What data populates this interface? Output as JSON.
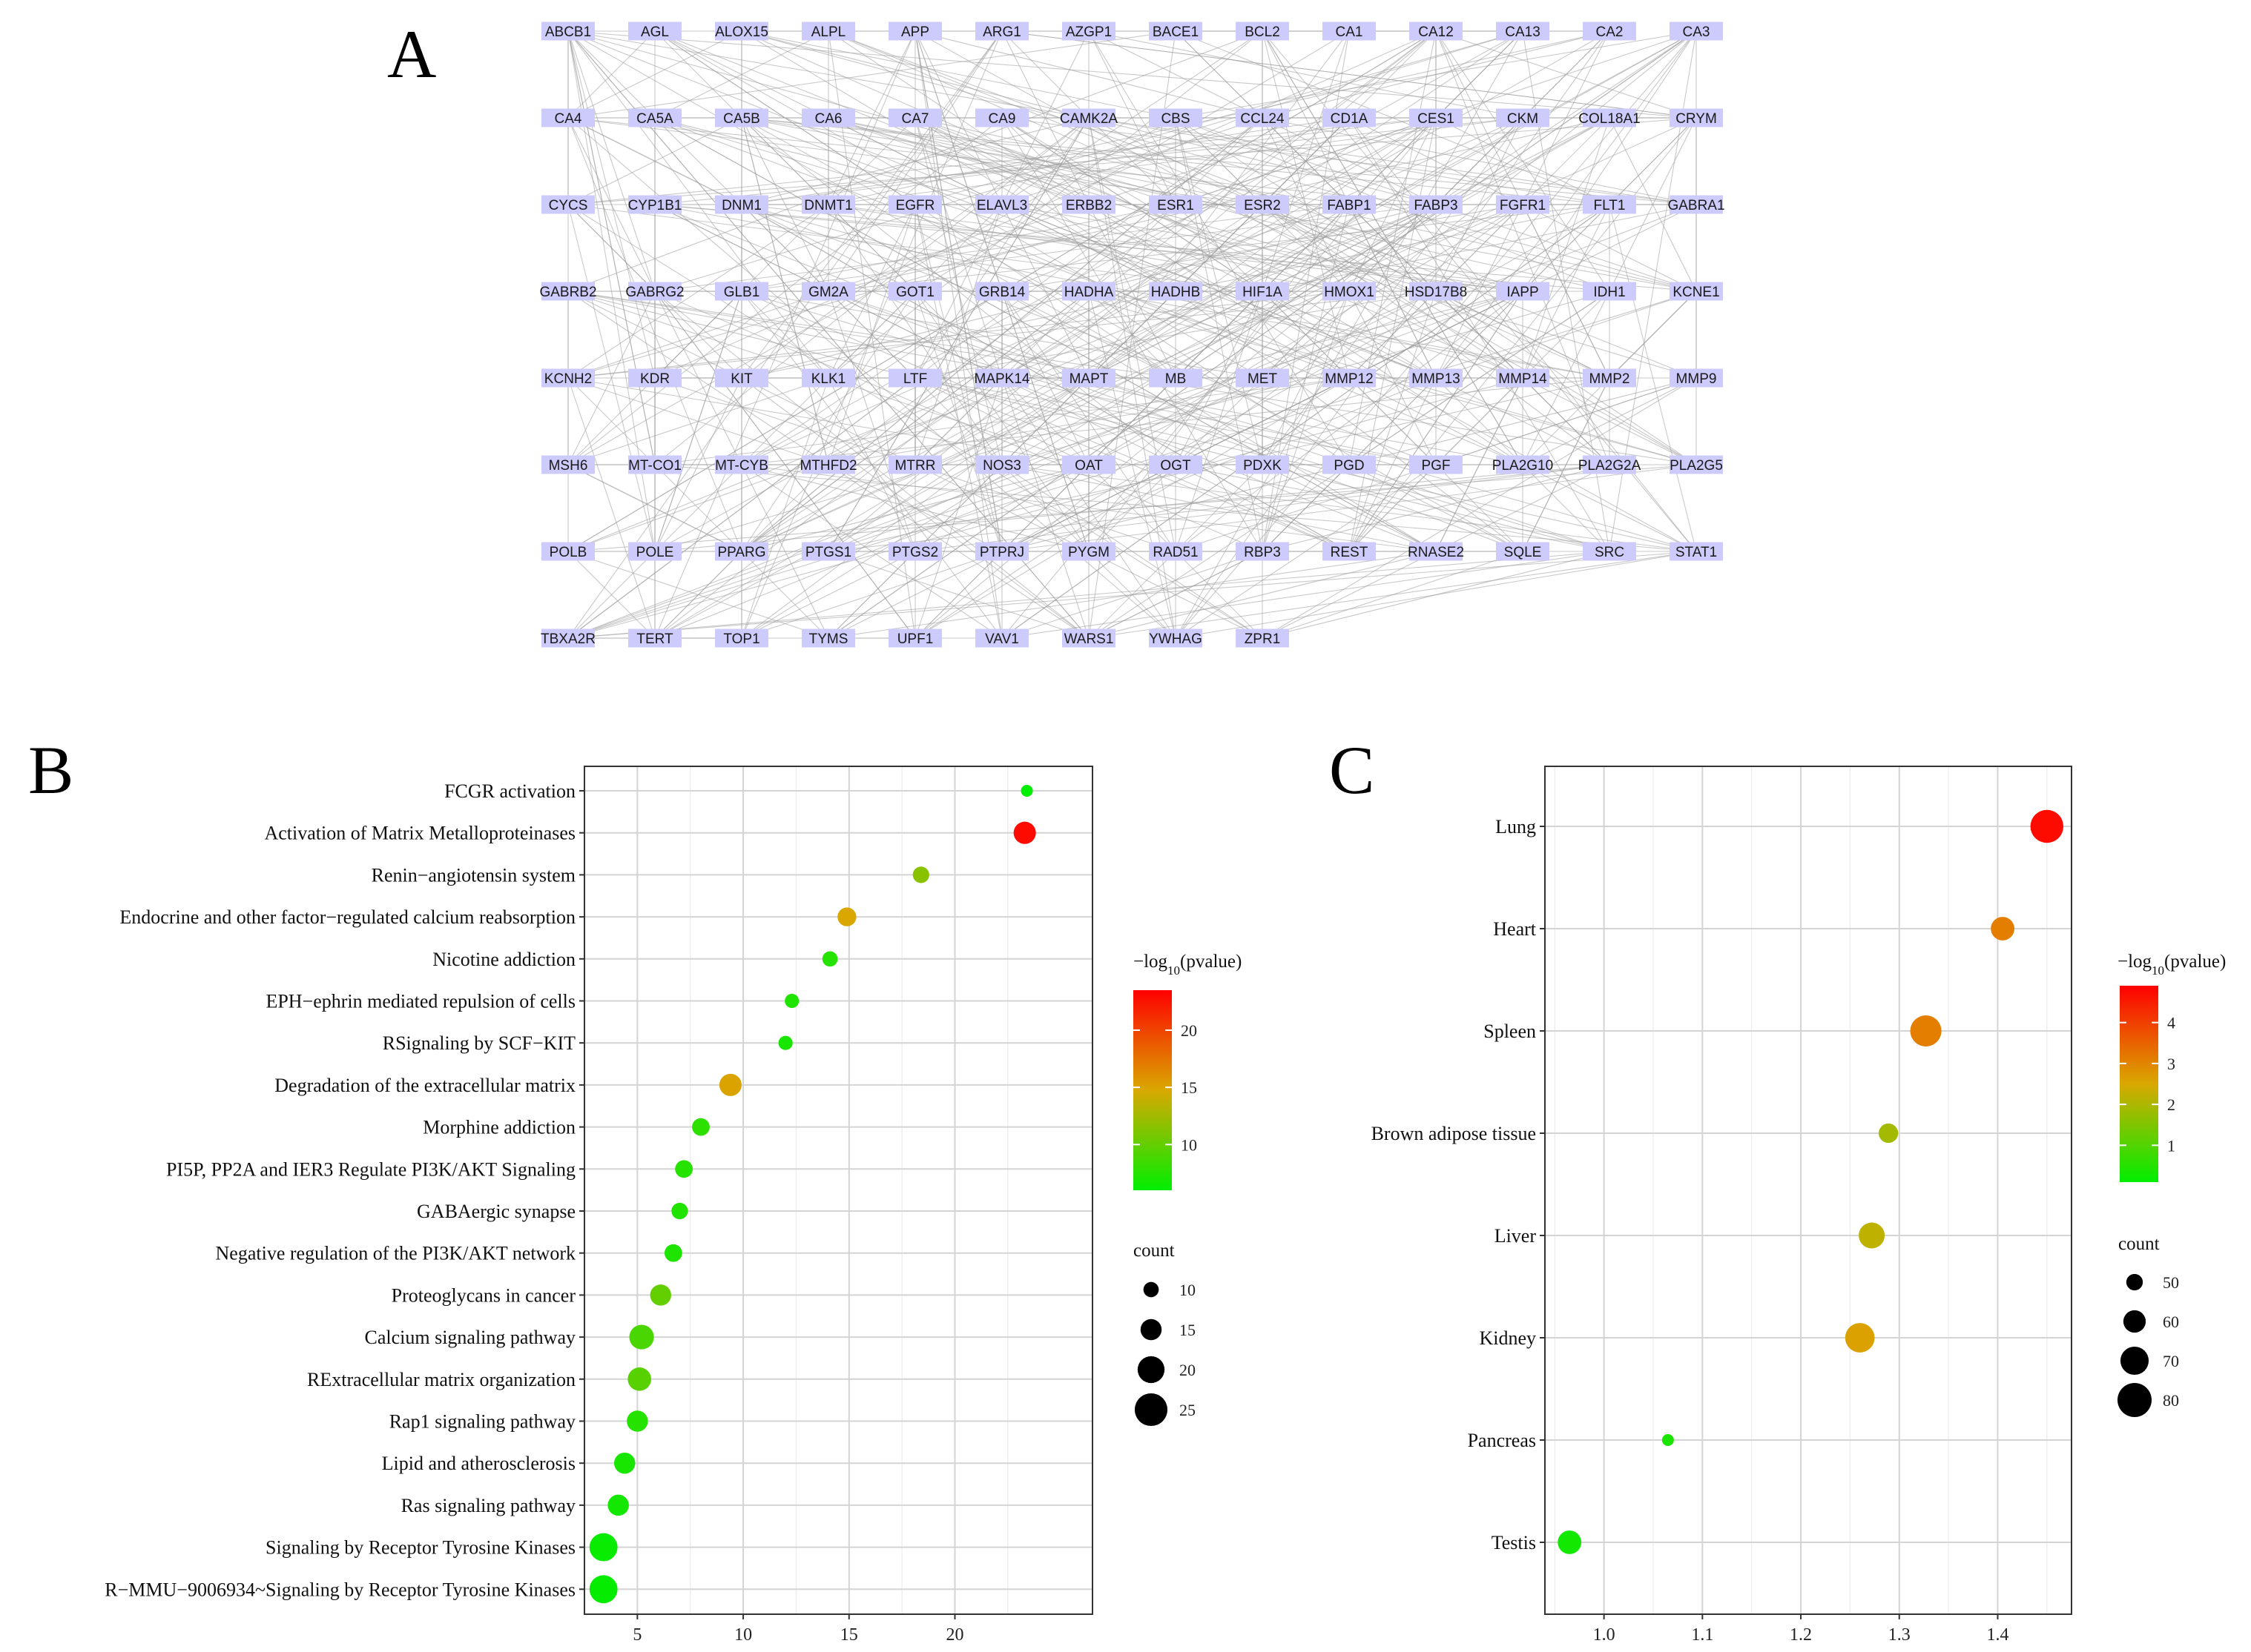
{
  "panel_labels": {
    "a": "A",
    "b": "B",
    "c": "C"
  },
  "colors": {
    "high": "#ff0000",
    "mid": "#d9a800",
    "low": "#00ee00",
    "node_fill": "#cccbfb",
    "edge": "#9d9d9d"
  },
  "network": {
    "rows": [
      [
        "ABCB1",
        "AGL",
        "ALOX15",
        "ALPL",
        "APP",
        "ARG1",
        "AZGP1",
        "BACE1",
        "BCL2",
        "CA1",
        "CA12",
        "CA13",
        "CA2",
        "CA3"
      ],
      [
        "CA4",
        "CA5A",
        "CA5B",
        "CA6",
        "CA7",
        "CA9",
        "CAMK2A",
        "CBS",
        "CCL24",
        "CD1A",
        "CES1",
        "CKM",
        "COL18A1",
        "CRYM"
      ],
      [
        "CYCS",
        "CYP1B1",
        "DNM1",
        "DNMT1",
        "EGFR",
        "ELAVL3",
        "ERBB2",
        "ESR1",
        "ESR2",
        "FABP1",
        "FABP3",
        "FGFR1",
        "FLT1",
        "GABRA1"
      ],
      [
        "GABRB2",
        "GABRG2",
        "GLB1",
        "GM2A",
        "GOT1",
        "GRB14",
        "HADHA",
        "HADHB",
        "HIF1A",
        "HMOX1",
        "HSD17B8",
        "IAPP",
        "IDH1",
        "KCNE1"
      ],
      [
        "KCNH2",
        "KDR",
        "KIT",
        "KLK1",
        "LTF",
        "MAPK14",
        "MAPT",
        "MB",
        "MET",
        "MMP12",
        "MMP13",
        "MMP14",
        "MMP2",
        "MMP9"
      ],
      [
        "MSH6",
        "MT-CO1",
        "MT-CYB",
        "MTHFD2",
        "MTRR",
        "NOS3",
        "OAT",
        "OGT",
        "PDXK",
        "PGD",
        "PGF",
        "PLA2G10",
        "PLA2G2A",
        "PLA2G5"
      ],
      [
        "POLB",
        "POLE",
        "PPARG",
        "PTGS1",
        "PTGS2",
        "PTPRJ",
        "PYGM",
        "RAD51",
        "RBP3",
        "REST",
        "RNASE2",
        "SQLE",
        "SRC",
        "STAT1"
      ],
      [
        "TBXA2R",
        "TERT",
        "TOP1",
        "TYMS",
        "UPF1",
        "VAV1",
        "WARS1",
        "YWHAG",
        "ZPR1"
      ]
    ]
  },
  "chart_data": [
    {
      "panel": "B",
      "type": "scatter",
      "categories": [
        "FCGR activation",
        "Activation of Matrix Metalloproteinases",
        "Renin−angiotensin system",
        "Endocrine and other factor−regulated calcium reabsorption",
        "Nicotine addiction",
        "EPH−ephrin mediated repulsion of cells",
        "RSignaling by SCF−KIT",
        "Degradation of the extracellular matrix",
        "Morphine addiction",
        "PI5P, PP2A and IER3 Regulate PI3K/AKT Signaling",
        "GABAergic synapse",
        "Negative regulation of the PI3K/AKT network",
        "Proteoglycans in cancer",
        "Calcium signaling pathway",
        "RExtracellular matrix organization",
        "Rap1 signaling pathway",
        "Lipid and atherosclerosis",
        "Ras signaling pathway",
        "Signaling by Receptor Tyrosine Kinases",
        "R−MMU−9006934~Signaling by Receptor Tyrosine Kinases"
      ],
      "x": [
        23.4,
        23.3,
        18.4,
        14.9,
        14.1,
        12.3,
        12.0,
        9.4,
        8.0,
        7.2,
        7.0,
        6.7,
        6.1,
        5.2,
        5.1,
        5.0,
        4.4,
        4.1,
        3.4,
        3.4
      ],
      "color_values": [
        6.0,
        23.0,
        11.5,
        14.8,
        7.5,
        7.2,
        7.0,
        15.0,
        7.8,
        7.5,
        7.3,
        7.2,
        10.0,
        9.0,
        9.5,
        7.5,
        7.0,
        6.8,
        6.3,
        6.2
      ],
      "counts": [
        7,
        16,
        11,
        13,
        10,
        9,
        9,
        16,
        12,
        12,
        11,
        12,
        15,
        18,
        17,
        15,
        15,
        15,
        21,
        21
      ],
      "xlim": [
        2.5,
        26.5
      ],
      "xticks": [
        5,
        10,
        15,
        20
      ],
      "color_legend": {
        "title_prefix": "−log",
        "title_sub": "10",
        "title_suffix": "(pvalue)",
        "ticks": [
          10,
          15,
          20
        ],
        "range": [
          6,
          23.5
        ]
      },
      "size_legend": {
        "title": "count",
        "ticks": [
          10,
          15,
          20,
          25
        ]
      }
    },
    {
      "panel": "C",
      "type": "scatter",
      "categories": [
        "Lung",
        "Heart",
        "Spleen",
        "Brown adipose tissue",
        "Liver",
        "Kidney",
        "Pancreas",
        "Testis"
      ],
      "x": [
        1.45,
        1.405,
        1.327,
        1.289,
        1.272,
        1.26,
        1.065,
        0.965
      ],
      "color_values": [
        4.75,
        3.1,
        3.1,
        1.9,
        2.2,
        2.6,
        0.4,
        0.3
      ],
      "counts": [
        78,
        62,
        75,
        55,
        66,
        72,
        42,
        62
      ],
      "xlim": [
        0.94,
        1.475
      ],
      "xticks": [
        1.0,
        1.1,
        1.2,
        1.3,
        1.4
      ],
      "xtick_labels": [
        "1.0",
        "1.1",
        "1.2",
        "1.3",
        "1.4"
      ],
      "color_legend": {
        "title_prefix": "−log",
        "title_sub": "10",
        "title_suffix": "(pvalue)",
        "ticks": [
          1,
          2,
          3,
          4
        ],
        "range": [
          0.1,
          4.9
        ]
      },
      "size_legend": {
        "title": "count",
        "ticks": [
          50,
          60,
          70,
          80
        ]
      }
    }
  ]
}
